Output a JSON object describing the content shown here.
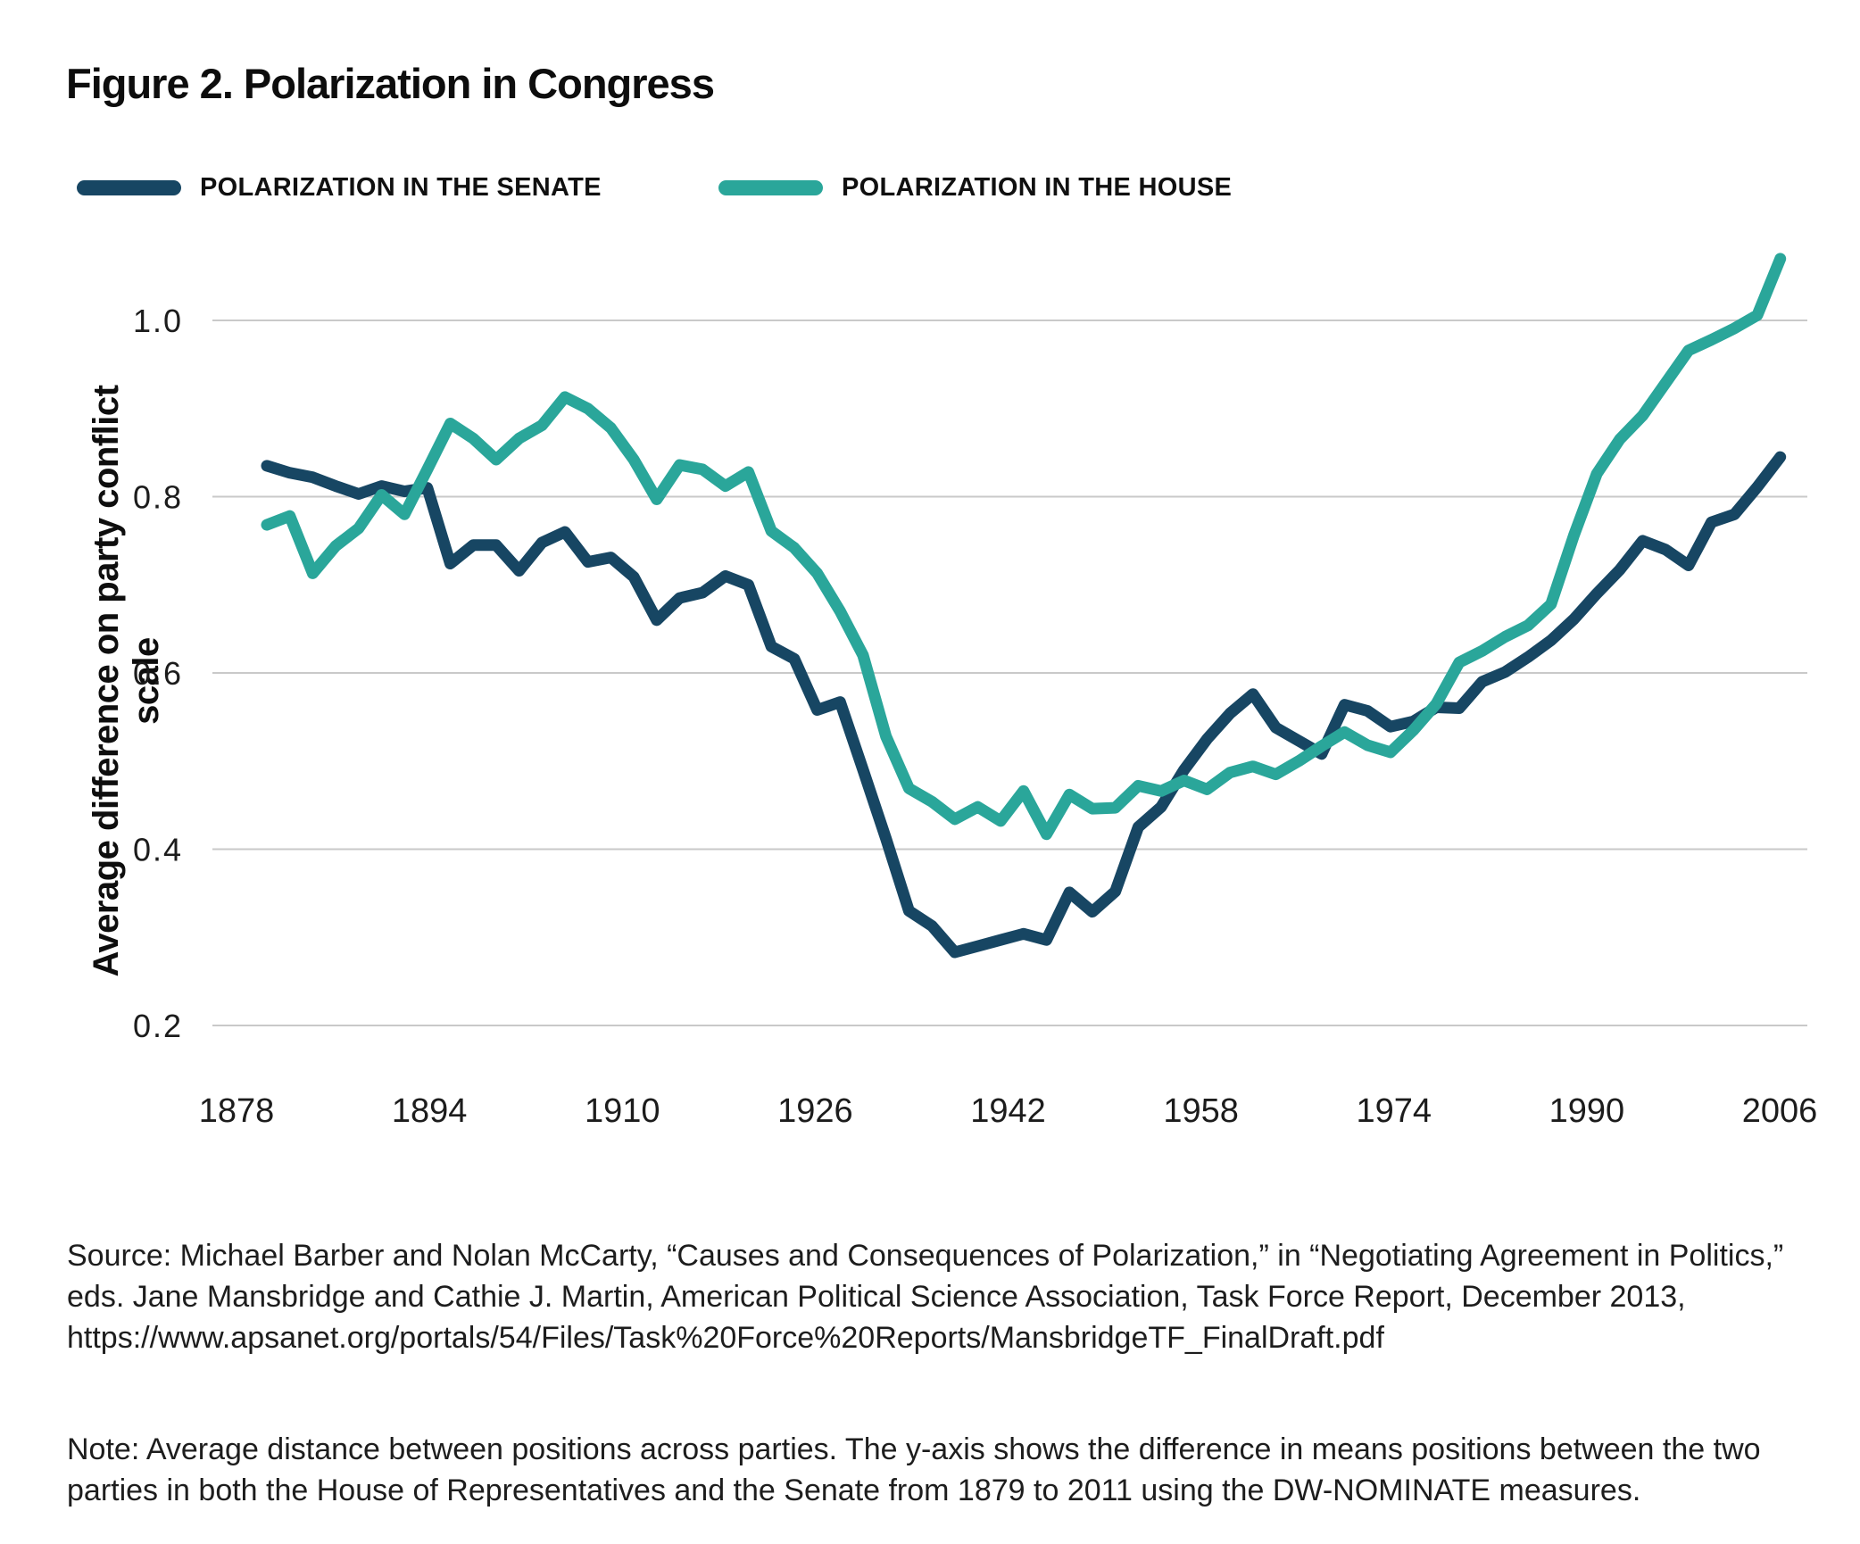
{
  "title": "Figure 2. Polarization in Congress",
  "legend": {
    "senate": {
      "label": "POLARIZATION IN THE SENATE",
      "color": "#174663"
    },
    "house": {
      "label": "POLARIZATION IN THE HOUSE",
      "color": "#2aa69a"
    }
  },
  "chart_data": {
    "type": "line",
    "title": "Figure 2. Polarization in Congress",
    "xlabel": "",
    "ylabel": "Average difference on party conflict scale",
    "x_ticks": [
      "1878",
      "1894",
      "1910",
      "1926",
      "1942",
      "1958",
      "1974",
      "1990",
      "2006"
    ],
    "y_ticks": [
      "1.0",
      "0.8",
      "0.6",
      "0.4",
      "0.2"
    ],
    "ylim": [
      0.13,
      1.12
    ],
    "xlim": [
      1878,
      2011
    ],
    "grid": "horizontal",
    "legend_position": "top",
    "x": [
      1879,
      1881,
      1883,
      1885,
      1887,
      1889,
      1891,
      1893,
      1895,
      1897,
      1899,
      1901,
      1903,
      1905,
      1907,
      1909,
      1911,
      1913,
      1915,
      1917,
      1919,
      1921,
      1923,
      1925,
      1927,
      1929,
      1931,
      1933,
      1935,
      1937,
      1939,
      1941,
      1943,
      1945,
      1947,
      1949,
      1951,
      1953,
      1955,
      1957,
      1959,
      1961,
      1963,
      1965,
      1967,
      1969,
      1971,
      1973,
      1975,
      1977,
      1979,
      1981,
      1983,
      1985,
      1987,
      1989,
      1991,
      1993,
      1995,
      1997,
      1999,
      2001,
      2003,
      2005,
      2007,
      2009,
      2011
    ],
    "series": [
      {
        "name": "Polarization in the Senate",
        "color": "#174663",
        "values": [
          0.835,
          0.827,
          0.822,
          0.812,
          0.803,
          0.812,
          0.806,
          0.81,
          0.724,
          0.745,
          0.745,
          0.716,
          0.748,
          0.76,
          0.726,
          0.731,
          0.709,
          0.66,
          0.685,
          0.691,
          0.71,
          0.7,
          0.63,
          0.616,
          0.558,
          0.567,
          0.49,
          0.412,
          0.33,
          0.313,
          0.283,
          0.29,
          0.297,
          0.304,
          0.297,
          0.351,
          0.329,
          0.352,
          0.425,
          0.448,
          0.49,
          0.525,
          0.554,
          0.576,
          0.538,
          0.523,
          0.508,
          0.564,
          0.557,
          0.539,
          0.545,
          0.561,
          0.56,
          0.59,
          0.601,
          0.618,
          0.637,
          0.661,
          0.69,
          0.717,
          0.75,
          0.74,
          0.722,
          0.771,
          0.78,
          0.811,
          0.845
        ]
      },
      {
        "name": "Polarization in the House",
        "color": "#2aa69a",
        "values": [
          0.768,
          0.778,
          0.713,
          0.744,
          0.764,
          0.802,
          0.78,
          0.831,
          0.883,
          0.866,
          0.842,
          0.866,
          0.881,
          0.913,
          0.9,
          0.878,
          0.842,
          0.797,
          0.836,
          0.831,
          0.812,
          0.828,
          0.761,
          0.742,
          0.713,
          0.67,
          0.62,
          0.528,
          0.469,
          0.454,
          0.434,
          0.448,
          0.432,
          0.466,
          0.417,
          0.462,
          0.446,
          0.447,
          0.472,
          0.466,
          0.478,
          0.468,
          0.487,
          0.494,
          0.485,
          0.5,
          0.517,
          0.533,
          0.518,
          0.51,
          0.535,
          0.565,
          0.612,
          0.625,
          0.641,
          0.654,
          0.678,
          0.756,
          0.826,
          0.865,
          0.892,
          0.929,
          0.966,
          0.978,
          0.991,
          1.006,
          1.07
        ]
      }
    ]
  },
  "source": "Source: Michael Barber and Nolan McCarty, “Causes and Consequences of Polarization,” in “Negotiating Agreement in Politics,” eds. Jane Mansbridge and Cathie J. Martin, American Political Science Association, Task Force Report, December 2013, https://www.apsanet.org/portals/54/Files/Task%20Force%20Reports/MansbridgeTF_FinalDraft.pdf",
  "note": "Note: Average distance between positions across parties. The y-axis shows the difference in means positions between the two parties in both the House of Representatives and the Senate from 1879 to 2011 using the DW-NOMINATE measures.",
  "colors": {
    "gridline": "#c9c9c9",
    "tick_text": "#1c1c1c",
    "background": "#ffffff"
  }
}
